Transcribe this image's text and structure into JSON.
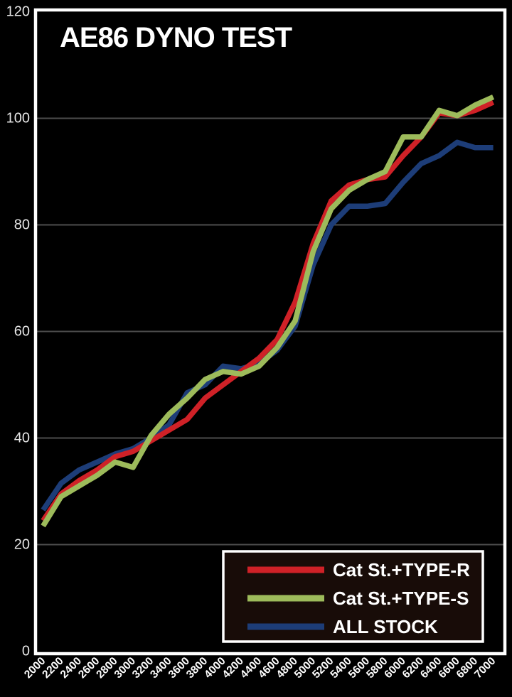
{
  "colors": {
    "background": "#000000",
    "plot_border": "#ffffff",
    "gridline": "#4d4d4d",
    "axis_label": "#e6e6e6",
    "tick_label": "#ffffff",
    "title_color": "#ffffff",
    "legend_bg": "#180c08",
    "legend_border": "#ffffff",
    "legend_text": "#ffffff",
    "series_red": "#cf2127",
    "series_green": "#9dbb5b",
    "series_blue": "#1d3d78"
  },
  "chart_data": {
    "type": "line",
    "title": "AE86 DYNO TEST",
    "xlabel": "",
    "ylabel": "",
    "x": [
      2000,
      2200,
      2400,
      2600,
      2800,
      3000,
      3200,
      3400,
      3600,
      3800,
      4000,
      4200,
      4400,
      4600,
      4800,
      5000,
      5200,
      5400,
      5600,
      5800,
      6000,
      6200,
      6400,
      6600,
      6800,
      7000
    ],
    "ylim": [
      0,
      120
    ],
    "yticks": [
      0,
      20,
      40,
      60,
      80,
      100,
      120
    ],
    "grid": true,
    "legend_position": "bottom-right",
    "series": [
      {
        "name": "Cat St.+TYPE-R",
        "color": "#cf2127",
        "values": [
          24.5,
          29.5,
          32,
          34,
          36.5,
          37.5,
          39.5,
          41.5,
          43.5,
          47.5,
          50,
          52.5,
          55,
          58.5,
          65.5,
          76.5,
          84.5,
          87.5,
          88.5,
          89,
          93,
          96.5,
          101,
          100.5,
          101.5,
          103
        ]
      },
      {
        "name": "Cat St.+TYPE-S",
        "color": "#9dbb5b",
        "values": [
          23.5,
          29,
          31,
          33,
          35.5,
          34.5,
          40.5,
          44.5,
          47.5,
          51,
          52.5,
          52,
          53.5,
          57,
          62,
          75,
          83,
          86.5,
          88.5,
          90,
          96.5,
          96.5,
          101.5,
          100.5,
          102.5,
          104
        ]
      },
      {
        "name": "ALL STOCK",
        "color": "#1d3d78",
        "values": [
          26.5,
          31.5,
          34,
          35.5,
          37,
          38,
          40,
          42.5,
          48.5,
          50,
          53.5,
          53,
          54,
          56.5,
          61,
          72.5,
          80,
          83.5,
          83.5,
          84,
          88,
          91.5,
          93,
          95.5,
          94.5,
          94.5
        ]
      }
    ]
  }
}
